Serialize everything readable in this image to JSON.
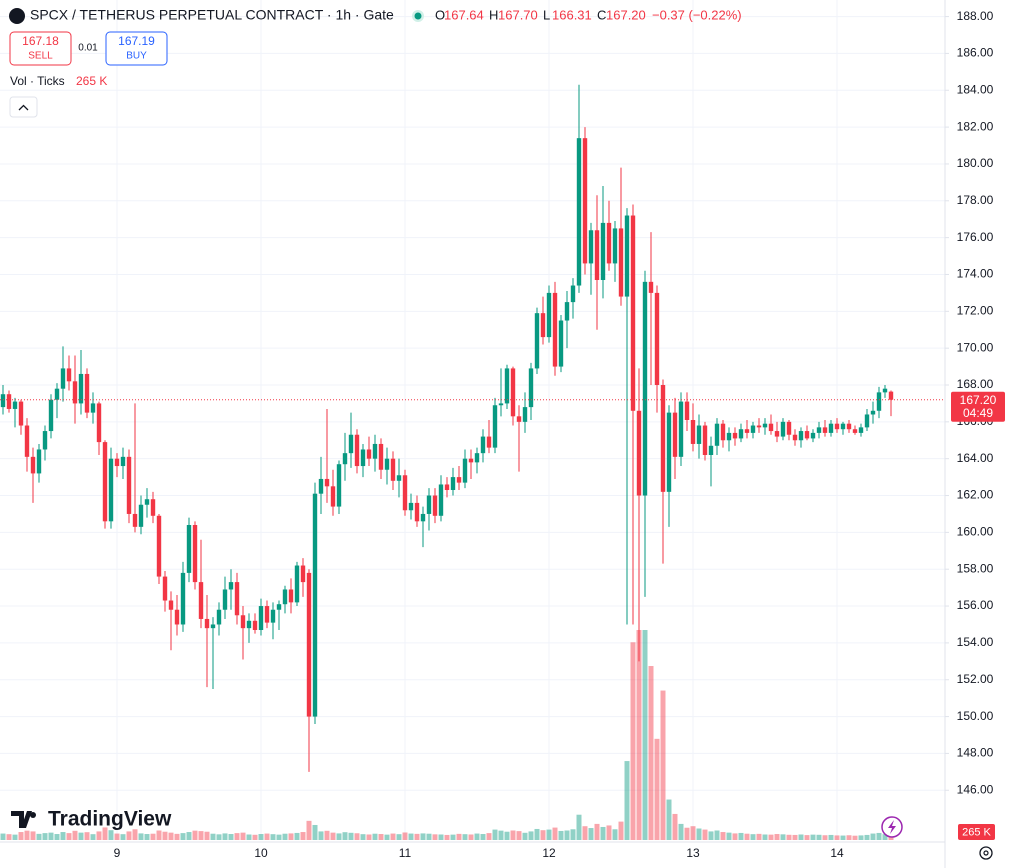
{
  "chart_data": {
    "type": "candlestick",
    "title": "SPCX / TETHERUS PERPETUAL CONTRACT · 1h · Gate",
    "ohlc_legend": [
      {
        "key": "O",
        "value": "167.64"
      },
      {
        "key": "H",
        "value": "167.70"
      },
      {
        "key": "L",
        "value": "166.31"
      },
      {
        "key": "C",
        "value": "167.20"
      }
    ],
    "change": "−0.37 (−0.22%)",
    "sell": {
      "price": "167.18",
      "label": "SELL"
    },
    "spread": "0.01",
    "buy": {
      "price": "167.19",
      "label": "BUY"
    },
    "volume_title": "Vol · Ticks",
    "volume_label": "265 K",
    "branding": "TradingView",
    "up_color": "#089981",
    "down_color": "#f23645",
    "grid": true,
    "ylim": [
      143.3,
      188.9
    ],
    "yticks": [
      {
        "value": 146,
        "label": "146.00"
      },
      {
        "value": 148,
        "label": "148.00"
      },
      {
        "value": 150,
        "label": "150.00"
      },
      {
        "value": 152,
        "label": "152.00"
      },
      {
        "value": 154,
        "label": "154.00"
      },
      {
        "value": 156,
        "label": "156.00"
      },
      {
        "value": 158,
        "label": "158.00"
      },
      {
        "value": 160,
        "label": "160.00"
      },
      {
        "value": 162,
        "label": "162.00"
      },
      {
        "value": 164,
        "label": "164.00"
      },
      {
        "value": 166,
        "label": "166.00"
      },
      {
        "value": 168,
        "label": "168.00"
      },
      {
        "value": 170,
        "label": "170.00"
      },
      {
        "value": 172,
        "label": "172.00"
      },
      {
        "value": 174,
        "label": "174.00"
      },
      {
        "value": 176,
        "label": "176.00"
      },
      {
        "value": 178,
        "label": "178.00"
      },
      {
        "value": 180,
        "label": "180.00"
      },
      {
        "value": 182,
        "label": "182.00"
      },
      {
        "value": 184,
        "label": "184.00"
      },
      {
        "value": 186,
        "label": "186.00"
      },
      {
        "value": 188,
        "label": "188.00"
      }
    ],
    "price_tag": {
      "value": 167.2,
      "label": "167.20",
      "countdown": "04:49"
    },
    "categories": [
      null,
      null,
      null,
      null,
      null,
      null,
      null,
      null,
      null,
      null,
      null,
      null,
      null,
      null,
      null,
      null,
      null,
      null,
      null,
      "9",
      null,
      null,
      null,
      null,
      null,
      null,
      null,
      null,
      null,
      null,
      null,
      null,
      null,
      null,
      null,
      null,
      null,
      null,
      null,
      null,
      null,
      null,
      null,
      "10",
      null,
      null,
      null,
      null,
      null,
      null,
      null,
      null,
      null,
      null,
      null,
      null,
      null,
      null,
      null,
      null,
      null,
      null,
      null,
      null,
      null,
      null,
      null,
      "11",
      null,
      null,
      null,
      null,
      null,
      null,
      null,
      null,
      null,
      null,
      null,
      null,
      null,
      null,
      null,
      null,
      null,
      null,
      null,
      null,
      null,
      null,
      null,
      "12",
      null,
      null,
      null,
      null,
      null,
      null,
      null,
      null,
      null,
      null,
      null,
      null,
      null,
      null,
      null,
      null,
      null,
      null,
      null,
      null,
      null,
      null,
      null,
      "13",
      null,
      null,
      null,
      null,
      null,
      null,
      null,
      null,
      null,
      null,
      null,
      null,
      null,
      null,
      null,
      null,
      null,
      null,
      null,
      null,
      null,
      null,
      null,
      "14",
      null,
      null,
      null,
      null,
      null,
      null,
      null,
      null,
      null
    ],
    "ohlc": [
      [
        166.8,
        168.0,
        166.4,
        167.5
      ],
      [
        167.5,
        167.7,
        166.5,
        166.7
      ],
      [
        166.7,
        167.3,
        165.7,
        167.1
      ],
      [
        167.1,
        167.2,
        165.3,
        165.8
      ],
      [
        165.8,
        166.2,
        163.3,
        164.1
      ],
      [
        164.1,
        164.6,
        161.6,
        163.2
      ],
      [
        163.2,
        164.8,
        162.7,
        164.5
      ],
      [
        164.5,
        165.8,
        163.9,
        165.5
      ],
      [
        165.5,
        167.5,
        165.1,
        167.2
      ],
      [
        167.2,
        168.1,
        166.2,
        167.8
      ],
      [
        167.8,
        170.1,
        167.1,
        168.9
      ],
      [
        168.9,
        169.6,
        167.7,
        168.2
      ],
      [
        168.2,
        169.6,
        165.9,
        167.0
      ],
      [
        167.0,
        169.9,
        166.4,
        168.6
      ],
      [
        168.6,
        168.9,
        166.2,
        166.5
      ],
      [
        166.5,
        167.6,
        165.9,
        167.0
      ],
      [
        167.0,
        167.1,
        164.2,
        164.9
      ],
      [
        164.9,
        165.0,
        160.2,
        160.6
      ],
      [
        160.6,
        164.6,
        160.2,
        164.0
      ],
      [
        164.0,
        164.3,
        163.0,
        163.6
      ],
      [
        163.6,
        164.6,
        162.9,
        164.1
      ],
      [
        164.1,
        164.5,
        160.5,
        161.0
      ],
      [
        161.0,
        167.0,
        160.0,
        160.3
      ],
      [
        160.3,
        162.0,
        159.9,
        161.5
      ],
      [
        161.5,
        162.4,
        160.8,
        161.8
      ],
      [
        161.8,
        162.2,
        160.5,
        160.9
      ],
      [
        160.9,
        161.0,
        157.2,
        157.6
      ],
      [
        157.6,
        157.9,
        155.7,
        156.3
      ],
      [
        156.3,
        156.8,
        153.6,
        155.8
      ],
      [
        155.8,
        156.6,
        154.4,
        155.0
      ],
      [
        155.0,
        158.4,
        154.6,
        157.8
      ],
      [
        157.8,
        160.8,
        157.3,
        160.4
      ],
      [
        160.4,
        160.6,
        156.9,
        157.3
      ],
      [
        157.3,
        159.6,
        154.8,
        155.3
      ],
      [
        155.3,
        156.6,
        151.6,
        154.8
      ],
      [
        154.8,
        155.4,
        151.5,
        155.0
      ],
      [
        155.0,
        156.2,
        154.4,
        155.8
      ],
      [
        155.8,
        157.6,
        155.3,
        156.9
      ],
      [
        156.9,
        158.0,
        155.8,
        157.3
      ],
      [
        157.3,
        157.8,
        155.0,
        155.5
      ],
      [
        155.5,
        156.0,
        153.1,
        154.8
      ],
      [
        154.8,
        155.6,
        154.0,
        155.2
      ],
      [
        155.2,
        155.6,
        154.5,
        154.7
      ],
      [
        154.7,
        156.4,
        154.4,
        156.0
      ],
      [
        156.0,
        156.3,
        154.8,
        155.1
      ],
      [
        155.1,
        156.2,
        154.2,
        155.8
      ],
      [
        155.8,
        156.3,
        154.7,
        156.1
      ],
      [
        156.1,
        157.1,
        155.6,
        156.9
      ],
      [
        156.9,
        157.5,
        155.6,
        156.2
      ],
      [
        156.2,
        158.4,
        156.0,
        158.2
      ],
      [
        158.2,
        158.6,
        156.5,
        157.3
      ],
      [
        157.8,
        158.0,
        147.0,
        150.0
      ],
      [
        150.0,
        162.7,
        149.6,
        162.1
      ],
      [
        162.1,
        164.1,
        161.0,
        162.9
      ],
      [
        162.9,
        166.7,
        161.6,
        162.5
      ],
      [
        162.5,
        163.4,
        160.9,
        161.4
      ],
      [
        161.4,
        163.9,
        161.0,
        163.7
      ],
      [
        163.7,
        165.4,
        162.8,
        164.3
      ],
      [
        164.3,
        166.5,
        163.5,
        165.3
      ],
      [
        165.3,
        165.6,
        163.2,
        163.6
      ],
      [
        163.6,
        164.8,
        163.0,
        164.5
      ],
      [
        164.5,
        165.2,
        163.6,
        164.0
      ],
      [
        164.0,
        165.3,
        163.3,
        164.8
      ],
      [
        164.8,
        165.1,
        162.9,
        163.4
      ],
      [
        163.4,
        164.6,
        162.6,
        164.0
      ],
      [
        164.0,
        164.4,
        162.3,
        162.8
      ],
      [
        162.8,
        164.0,
        161.9,
        163.1
      ],
      [
        163.1,
        163.4,
        160.9,
        161.2
      ],
      [
        161.2,
        162.1,
        160.7,
        161.6
      ],
      [
        161.6,
        162.0,
        160.3,
        160.6
      ],
      [
        160.6,
        161.4,
        159.2,
        161.0
      ],
      [
        161.0,
        162.4,
        160.1,
        162.0
      ],
      [
        162.0,
        162.4,
        160.5,
        160.9
      ],
      [
        160.9,
        163.1,
        160.6,
        162.6
      ],
      [
        162.6,
        163.0,
        161.9,
        162.3
      ],
      [
        162.3,
        163.5,
        162.0,
        163.0
      ],
      [
        163.0,
        163.6,
        162.3,
        162.7
      ],
      [
        162.7,
        164.5,
        162.4,
        164.0
      ],
      [
        164.0,
        164.5,
        162.9,
        163.8
      ],
      [
        163.8,
        164.6,
        163.2,
        164.3
      ],
      [
        164.3,
        165.6,
        163.8,
        165.2
      ],
      [
        165.2,
        166.1,
        164.3,
        164.6
      ],
      [
        164.6,
        167.3,
        164.3,
        166.9
      ],
      [
        166.9,
        168.9,
        166.3,
        167.0
      ],
      [
        167.0,
        169.1,
        166.7,
        168.9
      ],
      [
        168.9,
        169.0,
        165.8,
        166.3
      ],
      [
        166.3,
        166.9,
        163.3,
        166.0
      ],
      [
        166.0,
        167.6,
        165.4,
        166.8
      ],
      [
        166.8,
        169.2,
        166.1,
        168.9
      ],
      [
        168.9,
        172.2,
        168.6,
        171.9
      ],
      [
        171.9,
        172.8,
        170.2,
        170.6
      ],
      [
        170.6,
        173.4,
        170.3,
        173.0
      ],
      [
        173.0,
        173.6,
        168.5,
        169.0
      ],
      [
        169.0,
        171.8,
        168.7,
        171.5
      ],
      [
        171.5,
        173.1,
        170.0,
        172.5
      ],
      [
        172.5,
        173.8,
        171.6,
        173.4
      ],
      [
        173.4,
        184.3,
        173.0,
        181.4
      ],
      [
        181.4,
        182.0,
        174.0,
        174.6
      ],
      [
        174.6,
        176.8,
        172.9,
        176.4
      ],
      [
        176.4,
        178.3,
        171.0,
        173.7
      ],
      [
        173.7,
        178.8,
        172.7,
        176.8
      ],
      [
        176.8,
        178.0,
        174.2,
        174.6
      ],
      [
        174.6,
        176.9,
        173.6,
        176.5
      ],
      [
        176.5,
        179.8,
        172.3,
        172.8
      ],
      [
        172.8,
        177.6,
        155.0,
        177.2
      ],
      [
        177.2,
        177.8,
        155.0,
        166.6
      ],
      [
        166.6,
        168.9,
        153.0,
        162.0
      ],
      [
        162.0,
        174.2,
        156.5,
        173.6
      ],
      [
        173.6,
        176.3,
        168.0,
        173.0
      ],
      [
        173.0,
        173.4,
        166.5,
        168.0
      ],
      [
        168.0,
        168.3,
        158.3,
        162.2
      ],
      [
        162.2,
        166.9,
        160.3,
        166.5
      ],
      [
        166.5,
        167.3,
        162.9,
        164.1
      ],
      [
        164.1,
        167.6,
        163.6,
        167.1
      ],
      [
        167.1,
        167.6,
        165.5,
        166.1
      ],
      [
        166.1,
        167.0,
        164.4,
        164.8
      ],
      [
        164.8,
        166.4,
        164.0,
        165.8
      ],
      [
        165.8,
        166.0,
        163.9,
        164.2
      ],
      [
        164.2,
        165.2,
        162.5,
        164.7
      ],
      [
        164.7,
        166.2,
        164.2,
        165.9
      ],
      [
        165.9,
        166.1,
        164.6,
        165.0
      ],
      [
        165.0,
        165.7,
        164.4,
        165.4
      ],
      [
        165.4,
        165.7,
        164.7,
        165.1
      ],
      [
        165.1,
        165.9,
        164.9,
        165.6
      ],
      [
        165.6,
        166.1,
        165.1,
        165.4
      ],
      [
        165.4,
        166.0,
        165.1,
        165.8
      ],
      [
        165.8,
        166.2,
        165.4,
        165.7
      ],
      [
        165.7,
        166.2,
        165.3,
        165.9
      ],
      [
        165.9,
        166.4,
        165.3,
        165.5
      ],
      [
        165.5,
        166.0,
        164.9,
        165.2
      ],
      [
        165.2,
        166.2,
        165.0,
        166.0
      ],
      [
        166.0,
        166.1,
        165.0,
        165.3
      ],
      [
        165.3,
        165.6,
        164.7,
        165.0
      ],
      [
        165.0,
        165.7,
        164.6,
        165.5
      ],
      [
        165.5,
        165.8,
        165.0,
        165.1
      ],
      [
        165.1,
        165.6,
        164.9,
        165.4
      ],
      [
        165.4,
        166.0,
        165.1,
        165.7
      ],
      [
        165.7,
        166.1,
        165.2,
        165.4
      ],
      [
        165.4,
        166.1,
        165.2,
        165.9
      ],
      [
        165.9,
        166.2,
        165.4,
        165.6
      ],
      [
        165.6,
        166.0,
        165.3,
        165.9
      ],
      [
        165.9,
        166.1,
        165.4,
        165.6
      ],
      [
        165.6,
        165.8,
        165.3,
        165.4
      ],
      [
        165.4,
        165.9,
        165.2,
        165.7
      ],
      [
        165.7,
        166.7,
        165.5,
        166.4
      ],
      [
        166.4,
        167.1,
        165.9,
        166.6
      ],
      [
        166.6,
        167.9,
        166.2,
        167.6
      ],
      [
        167.6,
        168.0,
        167.3,
        167.8
      ],
      [
        167.64,
        167.7,
        166.31,
        167.2
      ]
    ],
    "volume": [
      420,
      380,
      350,
      520,
      610,
      560,
      400,
      450,
      480,
      390,
      520,
      450,
      600,
      480,
      510,
      380,
      560,
      820,
      640,
      420,
      380,
      560,
      700,
      430,
      390,
      410,
      620,
      540,
      480,
      400,
      450,
      520,
      610,
      580,
      540,
      410,
      370,
      430,
      390,
      450,
      480,
      360,
      340,
      390,
      420,
      380,
      350,
      410,
      430,
      460,
      520,
      1250,
      980,
      560,
      600,
      480,
      430,
      510,
      470,
      440,
      380,
      360,
      410,
      390,
      350,
      420,
      380,
      490,
      420,
      400,
      430,
      410,
      370,
      360,
      330,
      350,
      400,
      380,
      360,
      420,
      390,
      450,
      680,
      610,
      540,
      620,
      580,
      470,
      560,
      720,
      640,
      680,
      810,
      590,
      620,
      700,
      1650,
      900,
      780,
      1050,
      850,
      950,
      700,
      1200,
      5150,
      12900,
      13700,
      13700,
      11350,
      6600,
      9750,
      2640,
      1700,
      1050,
      800,
      900,
      750,
      680,
      560,
      620,
      520,
      480,
      430,
      460,
      410,
      380,
      400,
      360,
      350,
      390,
      370,
      340,
      330,
      360,
      320,
      350,
      340,
      310,
      330,
      300,
      290,
      310,
      280,
      300,
      330,
      420,
      460,
      380,
      265
    ]
  }
}
